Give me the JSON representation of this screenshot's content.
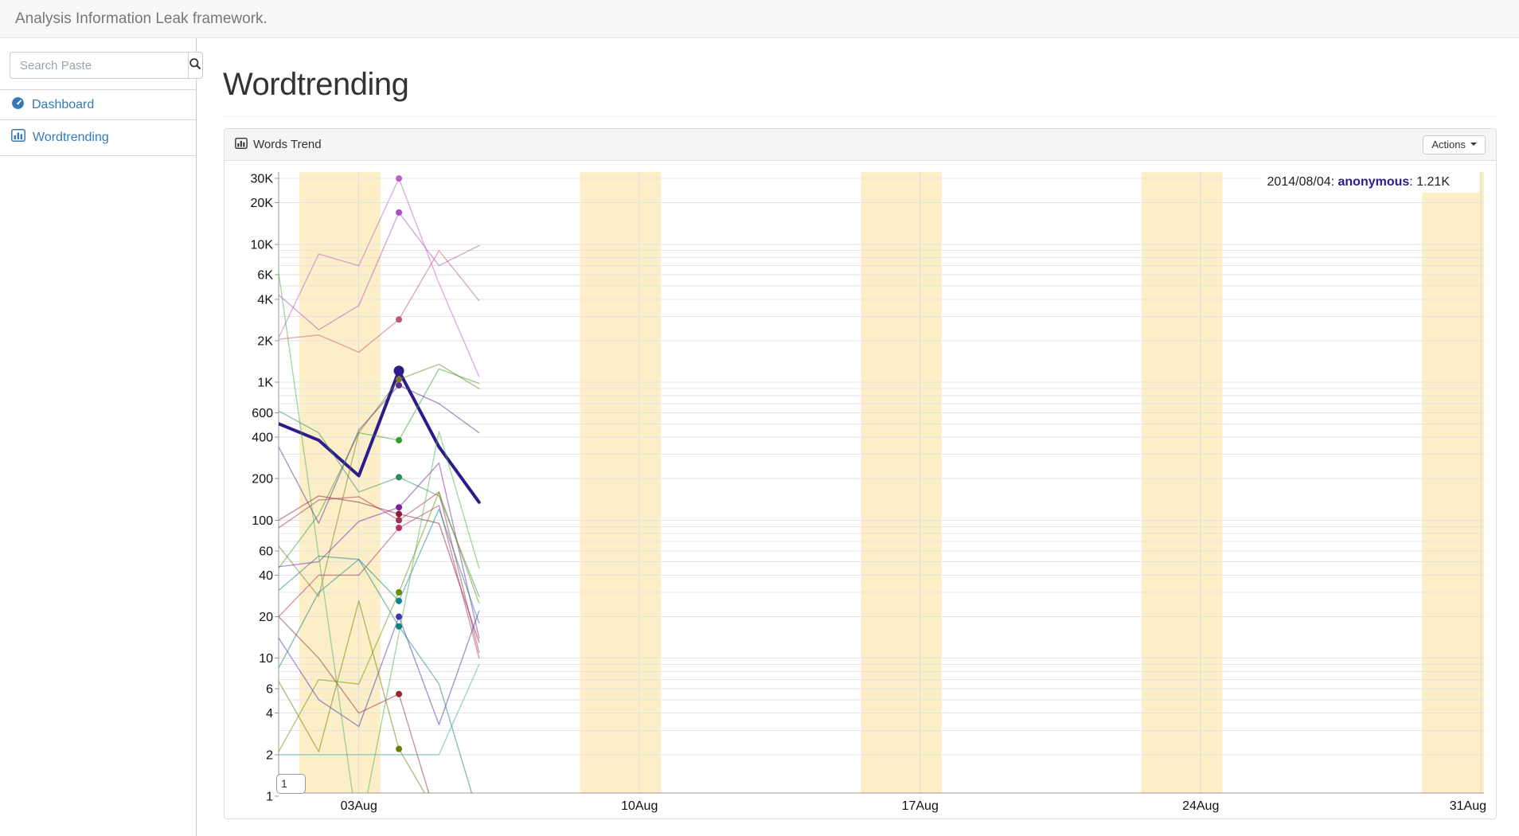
{
  "navbar": {
    "brand": "Analysis Information Leak framework."
  },
  "sidebar": {
    "search": {
      "placeholder": "Search Paste",
      "value": ""
    },
    "items": [
      {
        "label": "Dashboard"
      },
      {
        "label": "Wordtrending"
      }
    ]
  },
  "main": {
    "page_title": "Wordtrending",
    "panel": {
      "title": "Words Trend",
      "actions_label": "Actions"
    }
  },
  "chart_data": {
    "type": "line",
    "title": "Words Trend",
    "xlabel": "",
    "ylabel": "",
    "log_scale": true,
    "grid": true,
    "x_range_days": [
      0,
      30.07
    ],
    "x_ticks": [
      {
        "label": "03Aug",
        "day": 2
      },
      {
        "label": "10Aug",
        "day": 9
      },
      {
        "label": "17Aug",
        "day": 16
      },
      {
        "label": "24Aug",
        "day": 23
      },
      {
        "label": "31Aug",
        "day": 30
      }
    ],
    "y_ticks": [
      {
        "label": "30K",
        "value": 30000
      },
      {
        "label": "20K",
        "value": 20000
      },
      {
        "label": "10K",
        "value": 10000
      },
      {
        "label": "6K",
        "value": 6000
      },
      {
        "label": "4K",
        "value": 4000
      },
      {
        "label": "2K",
        "value": 2000
      },
      {
        "label": "1K",
        "value": 1000
      },
      {
        "label": "600",
        "value": 600
      },
      {
        "label": "400",
        "value": 400
      },
      {
        "label": "200",
        "value": 200
      },
      {
        "label": "100",
        "value": 100
      },
      {
        "label": "60",
        "value": 60
      },
      {
        "label": "40",
        "value": 40
      },
      {
        "label": "20",
        "value": 20
      },
      {
        "label": "10",
        "value": 10
      },
      {
        "label": "6",
        "value": 6
      },
      {
        "label": "4",
        "value": 4
      },
      {
        "label": "2",
        "value": 2
      },
      {
        "label": "1",
        "value": 1
      }
    ],
    "weekend_bands_days": [
      [
        0.52,
        2.54
      ],
      [
        7.52,
        9.54
      ],
      [
        14.52,
        16.54
      ],
      [
        21.52,
        23.54
      ],
      [
        28.52,
        30.54
      ]
    ],
    "hover": {
      "date": "2014/08/04",
      "series": "anonymous",
      "value": "1.21K",
      "day": 3
    },
    "legend_text": {
      "date_part": "2014/08/04: ",
      "series_part": "anonymous",
      "value_part": ": 1.21K"
    },
    "annotation": "1",
    "colors": {
      "band": "#FCEFC8",
      "grid": "#E3E3E3",
      "vgrid": "#DCDCDC",
      "axis": "#999999",
      "label": "#111111",
      "highlight": "#2B1B8C"
    },
    "series": [
      {
        "name": "anonymous",
        "color": "#2B1B8C",
        "highlighted": true,
        "dot": true,
        "points": [
          [
            0,
            500
          ],
          [
            1,
            380
          ],
          [
            2,
            210
          ],
          [
            3,
            1210
          ],
          [
            4,
            340
          ],
          [
            5,
            135
          ]
        ]
      },
      {
        "name": "",
        "color": "#BC5FC4",
        "highlighted": false,
        "dot": true,
        "points": [
          [
            0,
            2100
          ],
          [
            1,
            8500
          ],
          [
            2,
            7000
          ],
          [
            3,
            30000
          ],
          [
            4,
            5200
          ],
          [
            5,
            1100
          ]
        ]
      },
      {
        "name": "",
        "color": "#A94FC0",
        "highlighted": false,
        "dot": true,
        "points": [
          [
            0,
            4300
          ],
          [
            1,
            2400
          ],
          [
            2,
            3600
          ],
          [
            3,
            17000
          ],
          [
            4,
            7000
          ],
          [
            5,
            9800
          ]
        ]
      },
      {
        "name": "",
        "color": "#C2537B",
        "highlighted": false,
        "dot": true,
        "points": [
          [
            0,
            2050
          ],
          [
            1,
            2200
          ],
          [
            2,
            1650
          ],
          [
            3,
            2850
          ],
          [
            4,
            9000
          ],
          [
            5,
            3900
          ]
        ]
      },
      {
        "name": "",
        "color": "#7A7A1E",
        "highlighted": false,
        "dot": true,
        "points": [
          [
            0,
            65
          ],
          [
            1,
            28
          ],
          [
            2,
            430
          ],
          [
            3,
            1050
          ],
          [
            4,
            1350
          ],
          [
            5,
            900
          ]
        ]
      },
      {
        "name": "",
        "color": "#2FA02F",
        "highlighted": false,
        "dot": true,
        "points": [
          [
            0,
            45
          ],
          [
            1,
            110
          ],
          [
            2,
            430
          ],
          [
            3,
            380
          ],
          [
            4,
            1250
          ],
          [
            5,
            980
          ]
        ]
      },
      {
        "name": "",
        "color": "#2E8B57",
        "highlighted": false,
        "dot": true,
        "points": [
          [
            0,
            620
          ],
          [
            1,
            430
          ],
          [
            2,
            160
          ],
          [
            3,
            205
          ],
          [
            4,
            150
          ],
          [
            5,
            28
          ]
        ]
      },
      {
        "name": "",
        "color": "#7A1FA2",
        "highlighted": false,
        "dot": true,
        "points": [
          [
            0,
            46
          ],
          [
            1,
            50
          ],
          [
            2,
            98
          ],
          [
            3,
            124
          ],
          [
            4,
            260
          ],
          [
            5,
            14
          ]
        ]
      },
      {
        "name": "",
        "color": "#8C1C3C",
        "highlighted": false,
        "dot": true,
        "points": [
          [
            0,
            100
          ],
          [
            1,
            150
          ],
          [
            2,
            135
          ],
          [
            3,
            111
          ],
          [
            4,
            95
          ],
          [
            5,
            13
          ]
        ]
      },
      {
        "name": "",
        "color": "#A03050",
        "highlighted": false,
        "dot": true,
        "points": [
          [
            0,
            88
          ],
          [
            1,
            140
          ],
          [
            2,
            148
          ],
          [
            3,
            100
          ],
          [
            4,
            160
          ],
          [
            5,
            11
          ]
        ]
      },
      {
        "name": "",
        "color": "#B03060",
        "highlighted": false,
        "dot": true,
        "points": [
          [
            0,
            20
          ],
          [
            1,
            40
          ],
          [
            2,
            40
          ],
          [
            3,
            88
          ],
          [
            4,
            128
          ],
          [
            5,
            10
          ]
        ]
      },
      {
        "name": "",
        "color": "#6B8E00",
        "highlighted": false,
        "dot": true,
        "points": [
          [
            0,
            2.1
          ],
          [
            1,
            7
          ],
          [
            2,
            6.5
          ],
          [
            3,
            30
          ],
          [
            4,
            160
          ],
          [
            5,
            25
          ]
        ]
      },
      {
        "name": "",
        "color": "#12808C",
        "highlighted": false,
        "dot": true,
        "points": [
          [
            0,
            31
          ],
          [
            1,
            55
          ],
          [
            2,
            52
          ],
          [
            3,
            26
          ],
          [
            4,
            120
          ],
          [
            5,
            18
          ]
        ]
      },
      {
        "name": "",
        "color": "#3F31B5",
        "highlighted": false,
        "dot": true,
        "points": [
          [
            0,
            14
          ],
          [
            1,
            5
          ],
          [
            2,
            3.2
          ],
          [
            3,
            20
          ],
          [
            4,
            3.3
          ],
          [
            5,
            22
          ]
        ]
      },
      {
        "name": "",
        "color": "#108080",
        "highlighted": false,
        "dot": true,
        "points": [
          [
            0,
            8.5
          ],
          [
            1,
            30
          ],
          [
            2,
            52
          ],
          [
            3,
            17
          ],
          [
            4,
            6.5
          ],
          [
            5,
            0.7
          ]
        ]
      },
      {
        "name": "",
        "color": "#952A2A",
        "highlighted": false,
        "dot": true,
        "points": [
          [
            0,
            20
          ],
          [
            1,
            10
          ],
          [
            2,
            4
          ],
          [
            3,
            5.5
          ],
          [
            4,
            0.6
          ]
        ]
      },
      {
        "name": "",
        "color": "#678000",
        "highlighted": false,
        "dot": true,
        "points": [
          [
            0,
            6.8
          ],
          [
            1,
            2.1
          ],
          [
            2,
            26
          ],
          [
            3,
            2.2
          ],
          [
            4,
            0.7
          ]
        ]
      },
      {
        "name": "",
        "color": "#4CAF50",
        "highlighted": false,
        "dot": false,
        "points": [
          [
            0,
            6200
          ],
          [
            1,
            55
          ],
          [
            2,
            0.5
          ],
          [
            3,
            15
          ],
          [
            4,
            440
          ],
          [
            5,
            45
          ]
        ]
      },
      {
        "name": "",
        "color": "#38ACAC",
        "highlighted": false,
        "dot": false,
        "points": [
          [
            0,
            2
          ],
          [
            1,
            2
          ],
          [
            2,
            2
          ],
          [
            3,
            2
          ],
          [
            4,
            2
          ],
          [
            5,
            9
          ]
        ]
      },
      {
        "name": "",
        "color": "#582D8F",
        "highlighted": false,
        "dot": true,
        "points": [
          [
            0,
            340
          ],
          [
            1,
            95
          ],
          [
            2,
            450
          ],
          [
            3,
            950
          ],
          [
            4,
            700
          ],
          [
            5,
            430
          ]
        ]
      }
    ]
  }
}
